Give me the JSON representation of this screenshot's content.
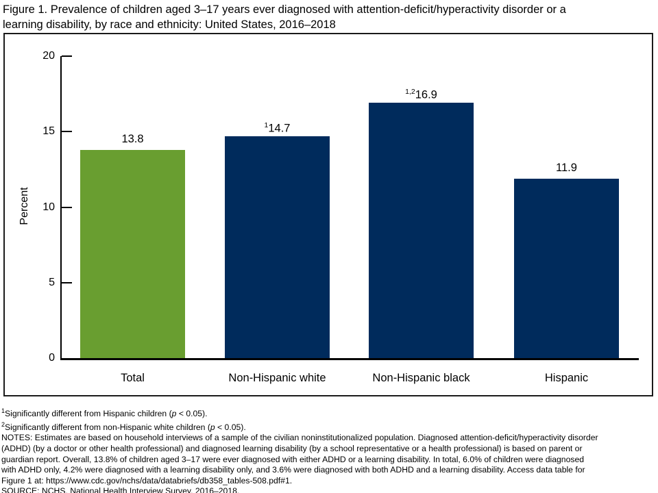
{
  "title": {
    "line1": "Figure 1. Prevalence of children aged 3–17 years ever diagnosed with attention-deficit/hyperactivity disorder or a",
    "line2": "learning disability, by race and ethnicity: United States, 2016–2018"
  },
  "chart_data": {
    "type": "bar",
    "title": "Figure 1. Prevalence of children aged 3–17 years ever diagnosed with attention-deficit/hyperactivity disorder or a learning disability, by race and ethnicity: United States, 2016–2018",
    "categories": [
      "Total",
      "Non-Hispanic white",
      "Non-Hispanic black",
      "Hispanic"
    ],
    "values": [
      13.8,
      14.7,
      16.9,
      11.9
    ],
    "bar_labels": [
      {
        "sup": "",
        "text": "13.8"
      },
      {
        "sup": "1",
        "text": "14.7"
      },
      {
        "sup": "1,2",
        "text": "16.9"
      },
      {
        "sup": "",
        "text": "11.9"
      }
    ],
    "bar_colors": [
      "#699E30",
      "#002B5C",
      "#002B5C",
      "#002B5C"
    ],
    "xlabel": "",
    "ylabel": "Percent",
    "ylim": [
      0,
      20
    ],
    "yticks": [
      0,
      5,
      10,
      15,
      20
    ],
    "grid": false,
    "legend": "none",
    "axis_color": "#000000"
  },
  "footnotes": {
    "fn1": {
      "sup": "1",
      "text": "Significantly different from Hispanic children (",
      "p": "p",
      "rest": " < 0.05)."
    },
    "fn2": {
      "sup": "2",
      "text": "Significantly different from non-Hispanic white children (",
      "p": "p",
      "rest": " < 0.05)."
    },
    "notes_lines": [
      "NOTES: Estimates are based on household interviews of a sample of the civilian noninstitutionalized population. Diagnosed attention-deficit/hyperactivity disorder",
      "(ADHD) (by a doctor or other health professional) and diagnosed learning disability (by a school representative or a health professional) is based on parent or",
      "guardian report. Overall, 13.8% of children aged 3–17 were ever diagnosed with either ADHD or a learning disability. In total, 6.0% of children were diagnosed",
      "with ADHD only, 4.2% were diagnosed with a learning disability only, and 3.6% were diagnosed with both ADHD and a learning disability. Access data table for",
      "Figure 1 at: https://www.cdc.gov/nchs/data/databriefs/db358_tables-508.pdf#1."
    ],
    "source": "SOURCE: NCHS, National Health Interview Survey, 2016–2018."
  }
}
